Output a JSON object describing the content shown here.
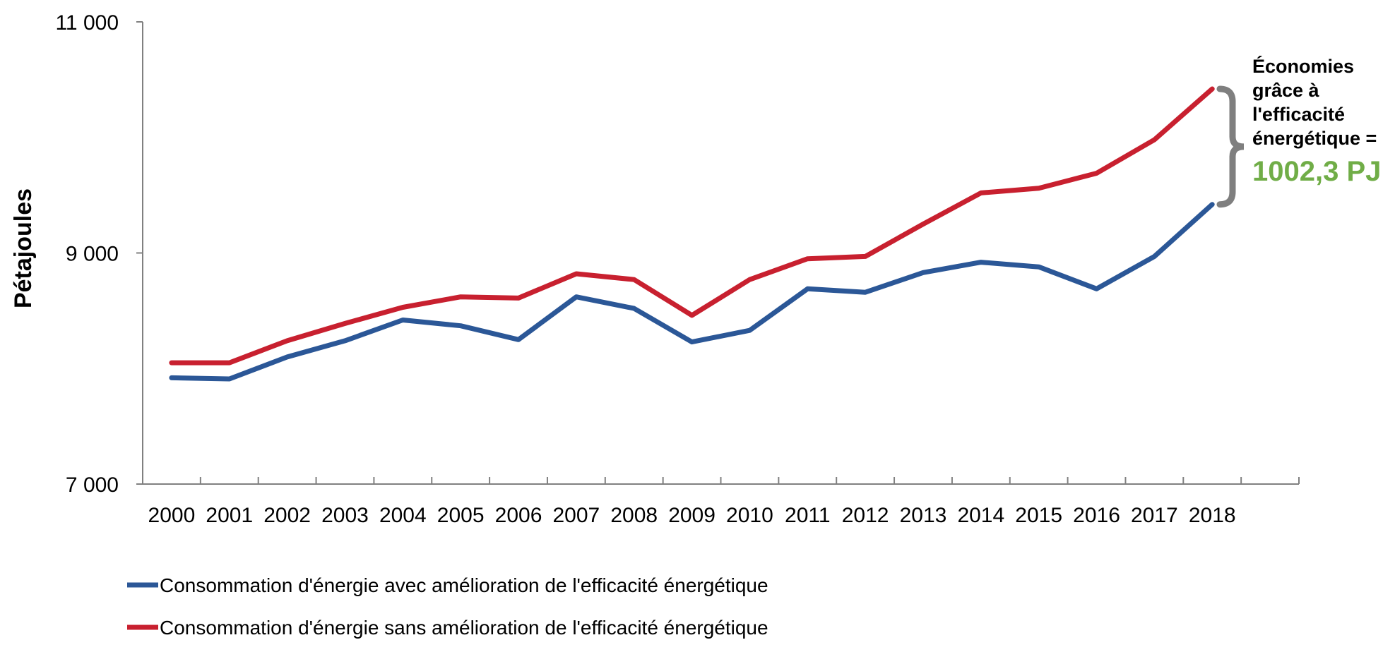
{
  "chart_data": {
    "type": "line",
    "title": "",
    "xlabel": "",
    "ylabel": "Pétajoules",
    "ylim": [
      7000,
      11000
    ],
    "yticks": [
      7000,
      9000,
      11000
    ],
    "ytick_labels": [
      "7 000",
      "9 000",
      "11 000"
    ],
    "grid": false,
    "legend_position": "bottom-left",
    "categories": [
      "2000",
      "2001",
      "2002",
      "2003",
      "2004",
      "2005",
      "2006",
      "2007",
      "2008",
      "2009",
      "2010",
      "2011",
      "2012",
      "2013",
      "2014",
      "2015",
      "2016",
      "2017",
      "2018"
    ],
    "series": [
      {
        "name": "Consommation d'énergie avec amélioration de l'efficacité énergétique",
        "color": "#2B5797",
        "values": [
          7920,
          7910,
          8100,
          8240,
          8420,
          8370,
          8250,
          8620,
          8520,
          8230,
          8330,
          8690,
          8660,
          8830,
          8920,
          8880,
          8690,
          8970,
          9420
        ]
      },
      {
        "name": "Consommation d'énergie sans amélioration de l'efficacité énergétique",
        "color": "#C8202F",
        "values": [
          8050,
          8050,
          8240,
          8390,
          8530,
          8620,
          8610,
          8820,
          8770,
          8460,
          8770,
          8950,
          8970,
          9250,
          9520,
          9560,
          9690,
          9980,
          10420
        ]
      }
    ],
    "annotation": {
      "lines": [
        "Économies",
        "grâce à",
        "l'efficacité",
        "énergétique ="
      ],
      "value": "1002,3 PJ",
      "value_color": "#70AD47",
      "bracket_color": "#7F7F7F"
    }
  }
}
